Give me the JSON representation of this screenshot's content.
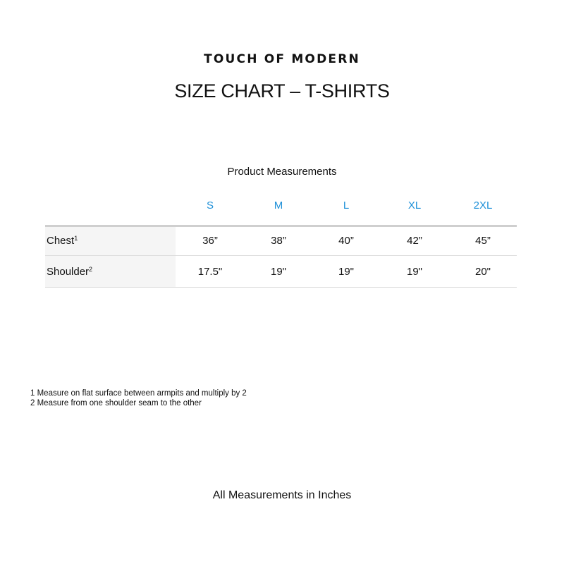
{
  "brand": "TOUCH OF MODERN",
  "title": "SIZE CHART – T-SHIRTS",
  "subtitle": "Product Measurements",
  "accent_color": "#1e90d8",
  "sizes": [
    "S",
    "M",
    "L",
    "XL",
    "2XL"
  ],
  "rows": [
    {
      "label": "Chest",
      "footnote": "1",
      "values": [
        "36”",
        "38”",
        "40”",
        "42”",
        "45”"
      ]
    },
    {
      "label": "Shoulder",
      "footnote": "2",
      "values": [
        "17.5\"",
        "19\"",
        "19\"",
        "19\"",
        "20\""
      ]
    }
  ],
  "notes": [
    "1 Measure on flat surface between armpits and multiply by 2",
    "2 Measure from one shoulder seam to the other"
  ],
  "footer": "All Measurements in Inches"
}
